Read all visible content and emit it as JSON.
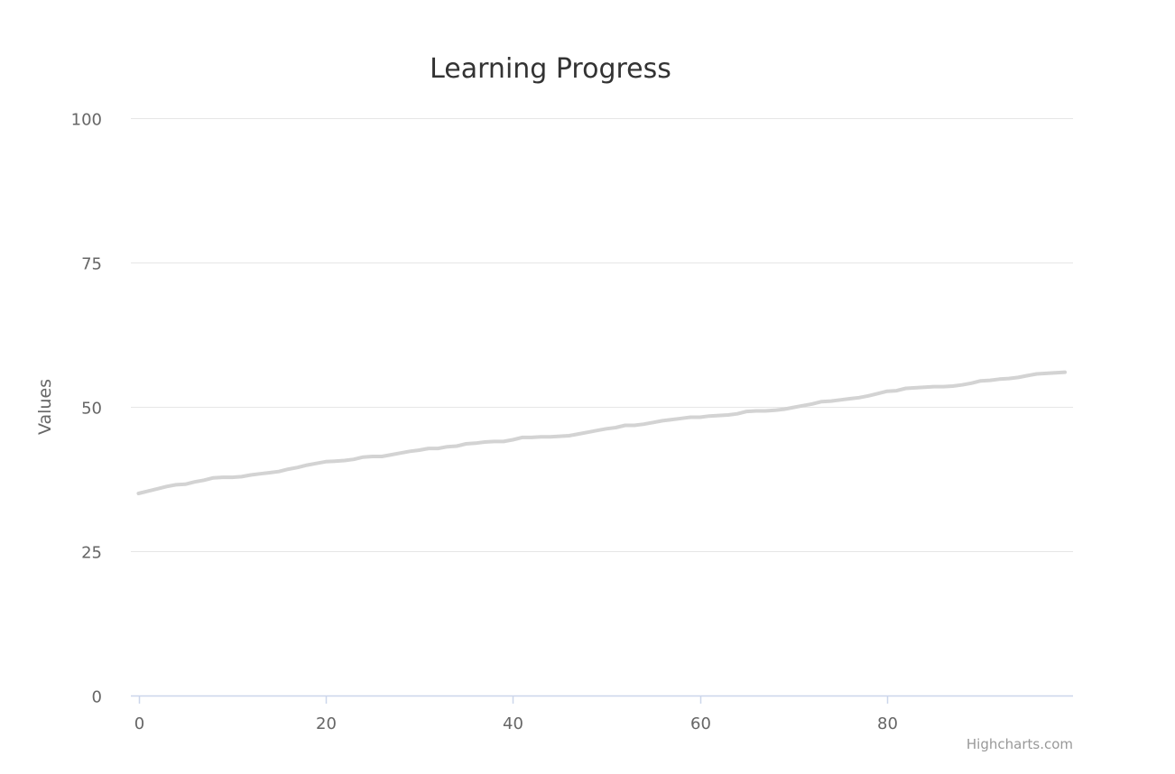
{
  "chart_data": {
    "type": "line",
    "title": "Learning Progress",
    "xlabel": "",
    "ylabel": "Values",
    "xlim": [
      0,
      99
    ],
    "ylim": [
      0,
      100
    ],
    "x_ticks": [
      0,
      20,
      40,
      60,
      80
    ],
    "y_ticks": [
      0,
      25,
      50,
      75,
      100
    ],
    "grid": true,
    "legend": "none",
    "colors": {
      "series": "#d3d3d3",
      "grid": "#e6e6e6",
      "axis": "#ccd6eb"
    },
    "series": [
      {
        "x": [
          0,
          1,
          2,
          3,
          4,
          5,
          6,
          7,
          8,
          9,
          10,
          11,
          12,
          13,
          14,
          15,
          16,
          17,
          18,
          19,
          20,
          21,
          22,
          23,
          24,
          25,
          26,
          27,
          28,
          29,
          30,
          31,
          32,
          33,
          34,
          35,
          36,
          37,
          38,
          39,
          40,
          41,
          42,
          43,
          44,
          45,
          46,
          47,
          48,
          49,
          50,
          51,
          52,
          53,
          54,
          55,
          56,
          57,
          58,
          59,
          60,
          61,
          62,
          63,
          64,
          65,
          66,
          67,
          68,
          69,
          70,
          71,
          72,
          73,
          74,
          75,
          76,
          77,
          78,
          79,
          80,
          81,
          82,
          83,
          84,
          85,
          86,
          87,
          88,
          89,
          90,
          91,
          92,
          93,
          94,
          95,
          96,
          97,
          98,
          99
        ],
        "values": [
          35.0,
          35.4,
          35.8,
          36.2,
          36.5,
          36.6,
          37.0,
          37.3,
          37.7,
          37.8,
          37.8,
          37.9,
          38.2,
          38.4,
          38.6,
          38.8,
          39.2,
          39.5,
          39.9,
          40.2,
          40.5,
          40.6,
          40.7,
          40.9,
          41.3,
          41.4,
          41.4,
          41.7,
          42.0,
          42.3,
          42.5,
          42.8,
          42.8,
          43.1,
          43.2,
          43.6,
          43.7,
          43.9,
          44.0,
          44.0,
          44.3,
          44.7,
          44.7,
          44.8,
          44.8,
          44.9,
          45.0,
          45.3,
          45.6,
          45.9,
          46.2,
          46.4,
          46.8,
          46.8,
          47.0,
          47.3,
          47.6,
          47.8,
          48.0,
          48.2,
          48.2,
          48.4,
          48.5,
          48.6,
          48.8,
          49.2,
          49.3,
          49.3,
          49.4,
          49.6,
          49.9,
          50.2,
          50.5,
          50.9,
          51.0,
          51.2,
          51.4,
          51.6,
          51.9,
          52.3,
          52.7,
          52.8,
          53.2,
          53.3,
          53.4,
          53.5,
          53.5,
          53.6,
          53.8,
          54.1,
          54.5,
          54.6,
          54.8,
          54.9,
          55.1,
          55.4,
          55.7,
          55.8,
          55.9,
          56.0
        ]
      }
    ]
  },
  "credits": "Highcharts.com"
}
